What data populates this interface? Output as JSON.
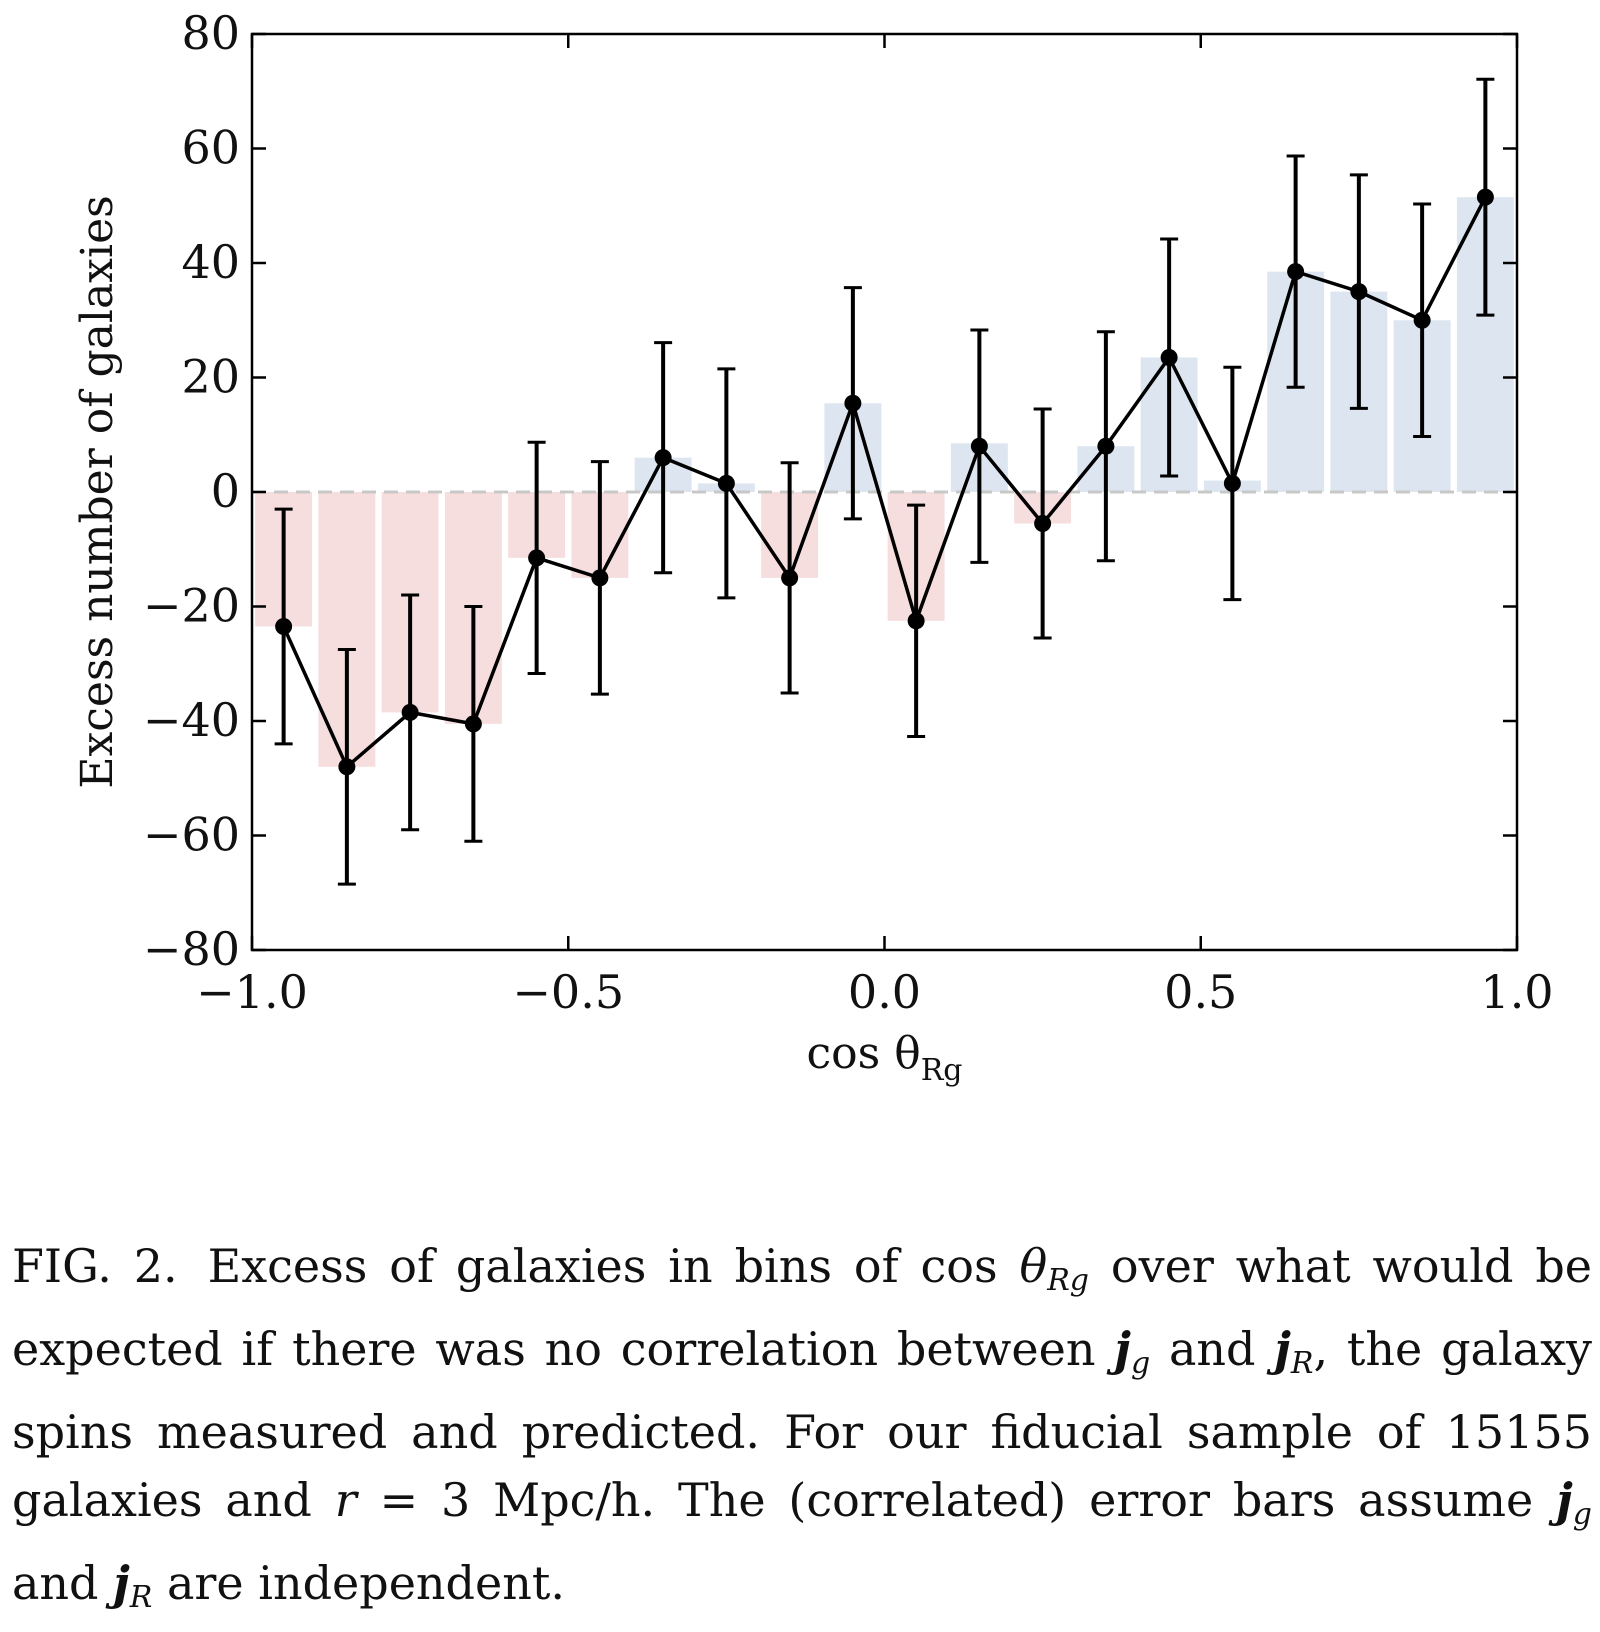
{
  "chart_data": {
    "type": "bar",
    "xlabel": "cos θ",
    "xlabel_subscript": "Rg",
    "ylabel": "Excess number of galaxies",
    "xlim": [
      -1.0,
      1.0
    ],
    "ylim": [
      -80,
      80
    ],
    "xticks": [
      "−1.0",
      "−0.5",
      "0.0",
      "0.5",
      "1.0"
    ],
    "xtick_values": [
      -1.0,
      -0.5,
      0.0,
      0.5,
      1.0
    ],
    "yticks": [
      "80",
      "60",
      "40",
      "20",
      "0",
      "−20",
      "−40",
      "−60",
      "−80"
    ],
    "ytick_values": [
      80,
      60,
      40,
      20,
      0,
      -20,
      -40,
      -60,
      -80
    ],
    "bin_width": 0.1,
    "x": [
      -0.95,
      -0.85,
      -0.75,
      -0.65,
      -0.55,
      -0.45,
      -0.35,
      -0.25,
      -0.15,
      -0.05,
      0.05,
      0.15,
      0.25,
      0.35,
      0.45,
      0.55,
      0.65,
      0.75,
      0.85,
      0.95
    ],
    "bars": [
      -23.5,
      -48,
      -38.5,
      -40.5,
      -11.5,
      -15,
      6,
      1.5,
      -15,
      15.5,
      -22.5,
      8.5,
      -5.5,
      8,
      23.5,
      2,
      38.5,
      35,
      30,
      51.5
    ],
    "points": [
      -23.5,
      -48,
      -38.5,
      -40.5,
      -11.5,
      -15,
      6,
      1.5,
      -15,
      15.5,
      -22.5,
      8,
      -5.5,
      8,
      23.5,
      1.5,
      38.5,
      35,
      30,
      51.5
    ],
    "error": [
      20.5,
      20.5,
      20.5,
      20.5,
      20.2,
      20.3,
      20.1,
      20,
      20.1,
      20.2,
      20.2,
      20.3,
      20,
      20,
      20.7,
      20.3,
      20.2,
      20.4,
      20.3,
      20.6
    ],
    "zero_line": "dashed",
    "colors": {
      "positive_bar": "#dde6f0",
      "negative_bar": "#f6dede",
      "line": "#000000",
      "zero_line": "#c8c8c8"
    }
  },
  "caption": {
    "label": "FIG. 2.",
    "part1": "Excess of galaxies in bins of cos ",
    "theta": "θ",
    "theta_sub": "Rg",
    "part2": " over what would be expected if there was no correlation between ",
    "j": "j",
    "g": "g",
    "and1": " and ",
    "R": "R",
    "part3": ", the galaxy spins measured and predicted.  For our fiducial sample of 15155 galaxies and ",
    "r": "r",
    "part4": " = 3 Mpc/h.  The (correlated) error bars assume ",
    "and2": " and ",
    "part5": " are independent."
  }
}
